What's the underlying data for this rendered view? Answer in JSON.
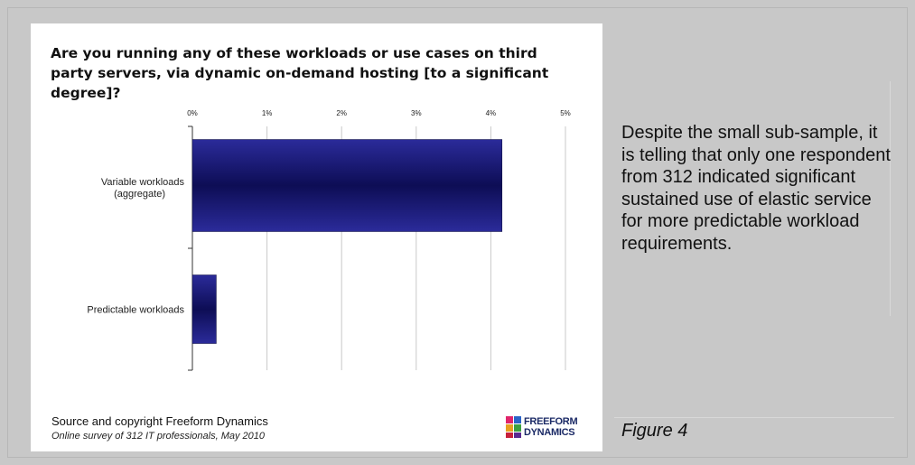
{
  "chart_data": {
    "type": "bar",
    "orientation": "horizontal",
    "title": "Are you running any of these workloads or use cases on third party servers, via dynamic on-demand hosting [to a significant degree]?",
    "categories": [
      "Variable workloads (aggregate)",
      "Predictable workloads"
    ],
    "category_lines": [
      [
        "Variable workloads",
        "(aggregate)"
      ],
      [
        "Predictable workloads"
      ]
    ],
    "values": [
      4.15,
      0.32
    ],
    "xlim": [
      0,
      5
    ],
    "xticks": [
      "0%",
      "1%",
      "2%",
      "3%",
      "4%",
      "5%"
    ],
    "grid": true,
    "bar_color": "#0f0f5a"
  },
  "footer": {
    "source": "Source and copyright Freeform Dynamics",
    "note": "Online survey of 312 IT professionals, May 2010",
    "logo_line1": "FREEFORM",
    "logo_line2": "DYNAMICS"
  },
  "side_text": "Despite the small sub-sample, it is telling that only one respondent from 312 indicated significant sustained use of elastic service for more predictable workload requirements.",
  "figure_label": "Figure 4"
}
